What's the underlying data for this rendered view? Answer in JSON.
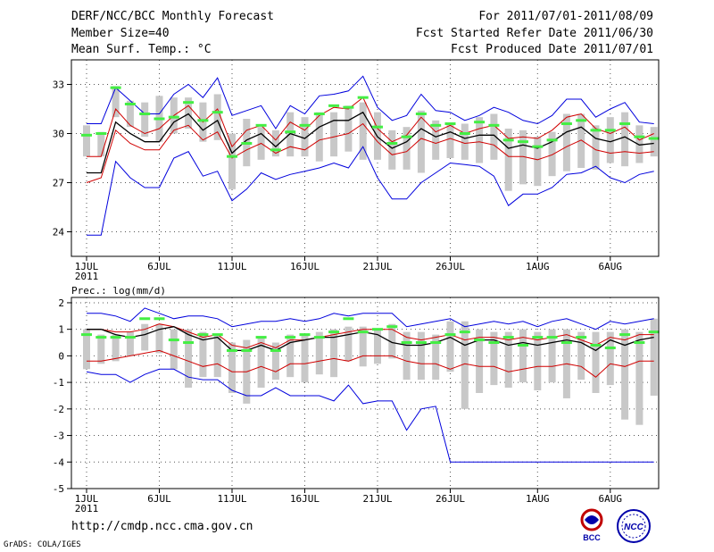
{
  "header": {
    "title": "DERF/NCC/BCC Monthly Forecast",
    "member_size": "Member Size=40",
    "variable": "Mean Surf. Temp.: °C",
    "period": "For 2011/07/01-2011/08/09",
    "start_date": "Fcst Started Refer Date 2011/06/30",
    "produced_date": "Fcst Produced Date 2011/07/01"
  },
  "footer": {
    "url": "http://cmdp.ncc.cma.gov.cn",
    "credit": "GrADS: COLA/IGES",
    "logo_bcc": "BCC",
    "logo_ncc": "NCC"
  },
  "colors": {
    "envelope": "#0000dd",
    "spread": "#d00000",
    "mean": "#000000",
    "box": "#c8c8c8",
    "median": "#44ee44"
  },
  "chart_data": [
    {
      "type": "line",
      "title": "Mean Surf. Temp.: °C",
      "x_tick_labels": [
        "1JUL",
        "6JUL",
        "11JUL",
        "16JUL",
        "21JUL",
        "26JUL",
        "1AUG",
        "6AUG"
      ],
      "x_tick_days": [
        1,
        6,
        11,
        16,
        21,
        26,
        32,
        37
      ],
      "year_label": "2011",
      "ylim": [
        22.5,
        34.5
      ],
      "y_ticks": [
        24,
        27,
        30,
        33
      ],
      "x": [
        1,
        2,
        3,
        4,
        5,
        6,
        7,
        8,
        9,
        10,
        11,
        12,
        13,
        14,
        15,
        16,
        17,
        18,
        19,
        20,
        21,
        22,
        23,
        24,
        25,
        26,
        27,
        28,
        29,
        30,
        31,
        32,
        33,
        34,
        35,
        36,
        37,
        38,
        39,
        40
      ],
      "series": [
        {
          "name": "max",
          "values": [
            23.8,
            23.8,
            28.3,
            27.3,
            26.7,
            26.7,
            28.5,
            28.9,
            27.4,
            27.7,
            25.9,
            26.6,
            27.6,
            27.2,
            27.5,
            27.7,
            27.9,
            28.2,
            27.9,
            29.2,
            27.3,
            26.0,
            26.0,
            27.0,
            27.6,
            28.2,
            28.1,
            28.0,
            27.4,
            25.6,
            26.3,
            26.3,
            26.7,
            27.5,
            27.6,
            28.0,
            27.3,
            27.0,
            27.5,
            27.7
          ]
        },
        {
          "name": "max_upper",
          "values": [
            30.6,
            30.6,
            32.8,
            32.0,
            31.2,
            31.2,
            32.4,
            33.0,
            32.2,
            33.4,
            31.1,
            31.4,
            31.7,
            30.3,
            31.7,
            31.2,
            32.3,
            32.4,
            32.6,
            33.5,
            31.6,
            30.8,
            31.1,
            32.4,
            31.4,
            31.3,
            30.8,
            31.1,
            31.6,
            31.3,
            30.8,
            30.6,
            31.1,
            32.1,
            32.1,
            31.0,
            31.5,
            31.9,
            30.7,
            30.6
          ]
        },
        {
          "name": "spread_low",
          "values": [
            27.0,
            27.3,
            30.2,
            29.4,
            29.0,
            29.0,
            30.2,
            30.5,
            29.6,
            30.1,
            28.5,
            29.0,
            29.4,
            28.8,
            29.2,
            29.0,
            29.6,
            29.8,
            30.0,
            30.6,
            29.5,
            28.7,
            28.9,
            29.7,
            29.4,
            29.7,
            29.4,
            29.5,
            29.3,
            28.6,
            28.6,
            28.4,
            28.7,
            29.2,
            29.6,
            29.0,
            28.8,
            28.9,
            28.8,
            28.9
          ]
        },
        {
          "name": "spread_high",
          "values": [
            28.6,
            28.6,
            31.5,
            30.5,
            30.0,
            30.3,
            31.1,
            31.7,
            30.7,
            31.5,
            29.2,
            30.2,
            30.5,
            29.6,
            30.7,
            30.2,
            31.1,
            31.6,
            31.5,
            32.2,
            30.3,
            29.5,
            29.9,
            31.0,
            30.1,
            30.5,
            30.0,
            30.3,
            30.5,
            29.7,
            29.8,
            29.7,
            30.2,
            31.0,
            31.2,
            30.3,
            30.0,
            30.4,
            29.6,
            30.0
          ]
        },
        {
          "name": "mean",
          "values": [
            27.6,
            27.6,
            30.7,
            30.0,
            29.5,
            29.5,
            30.7,
            31.2,
            30.2,
            30.8,
            28.8,
            29.6,
            30.0,
            29.2,
            30.0,
            29.7,
            30.4,
            30.8,
            30.8,
            31.3,
            29.8,
            29.1,
            29.5,
            30.3,
            29.8,
            30.1,
            29.7,
            29.9,
            29.9,
            29.1,
            29.3,
            29.1,
            29.5,
            30.1,
            30.4,
            29.7,
            29.5,
            29.8,
            29.3,
            29.4
          ]
        }
      ],
      "boxes": [
        {
          "x": 1,
          "low": 28.6,
          "high": 30.5,
          "median": 29.9
        },
        {
          "x": 2,
          "low": 28.6,
          "high": 30.1,
          "median": 30.0
        },
        {
          "x": 3,
          "low": 31.0,
          "high": 32.9,
          "median": 32.8
        },
        {
          "x": 4,
          "low": 30.4,
          "high": 32.0,
          "median": 31.8
        },
        {
          "x": 5,
          "low": 29.8,
          "high": 31.9,
          "median": 31.2
        },
        {
          "x": 6,
          "low": 29.5,
          "high": 32.3,
          "median": 30.9
        },
        {
          "x": 7,
          "low": 30.0,
          "high": 32.2,
          "median": 31.0
        },
        {
          "x": 8,
          "low": 30.3,
          "high": 32.2,
          "median": 31.9
        },
        {
          "x": 9,
          "low": 29.5,
          "high": 31.9,
          "median": 30.8
        },
        {
          "x": 10,
          "low": 29.6,
          "high": 32.4,
          "median": 31.3
        },
        {
          "x": 11,
          "low": 26.6,
          "high": 30.0,
          "median": 28.6
        },
        {
          "x": 12,
          "low": 28.0,
          "high": 30.9,
          "median": 29.4
        },
        {
          "x": 13,
          "low": 28.4,
          "high": 30.4,
          "median": 30.5
        },
        {
          "x": 14,
          "low": 28.6,
          "high": 30.2,
          "median": 29.0
        },
        {
          "x": 15,
          "low": 28.6,
          "high": 31.3,
          "median": 30.1
        },
        {
          "x": 16,
          "low": 28.6,
          "high": 31.0,
          "median": 30.5
        },
        {
          "x": 17,
          "low": 28.3,
          "high": 31.3,
          "median": 31.2
        },
        {
          "x": 18,
          "low": 28.6,
          "high": 31.3,
          "median": 31.7
        },
        {
          "x": 19,
          "low": 28.9,
          "high": 31.7,
          "median": 31.6
        },
        {
          "x": 20,
          "low": 28.4,
          "high": 31.9,
          "median": 32.2
        },
        {
          "x": 21,
          "low": 28.4,
          "high": 31.3,
          "median": 30.4
        },
        {
          "x": 22,
          "low": 27.8,
          "high": 30.2,
          "median": 29.4
        },
        {
          "x": 23,
          "low": 27.8,
          "high": 30.4,
          "median": 29.8
        },
        {
          "x": 24,
          "low": 27.6,
          "high": 31.4,
          "median": 31.2
        },
        {
          "x": 25,
          "low": 28.4,
          "high": 30.8,
          "median": 30.5
        },
        {
          "x": 26,
          "low": 28.5,
          "high": 30.6,
          "median": 30.6
        },
        {
          "x": 27,
          "low": 28.4,
          "high": 30.6,
          "median": 30.0
        },
        {
          "x": 28,
          "low": 28.2,
          "high": 31.0,
          "median": 30.7
        },
        {
          "x": 29,
          "low": 28.4,
          "high": 31.2,
          "median": 30.5
        },
        {
          "x": 30,
          "low": 26.5,
          "high": 30.3,
          "median": 29.6
        },
        {
          "x": 31,
          "low": 26.9,
          "high": 30.2,
          "median": 29.5
        },
        {
          "x": 32,
          "low": 26.8,
          "high": 29.8,
          "median": 29.2
        },
        {
          "x": 33,
          "low": 27.4,
          "high": 30.1,
          "median": 29.6
        },
        {
          "x": 34,
          "low": 27.7,
          "high": 31.2,
          "median": 30.6
        },
        {
          "x": 35,
          "low": 27.9,
          "high": 31.2,
          "median": 30.8
        },
        {
          "x": 36,
          "low": 27.8,
          "high": 30.5,
          "median": 30.2
        },
        {
          "x": 37,
          "low": 28.2,
          "high": 31.0,
          "median": 30.2
        },
        {
          "x": 38,
          "low": 28.0,
          "high": 31.3,
          "median": 30.6
        },
        {
          "x": 39,
          "low": 28.2,
          "high": 30.5,
          "median": 29.8
        },
        {
          "x": 40,
          "low": 28.6,
          "high": 30.4,
          "median": 29.7
        }
      ]
    },
    {
      "type": "line",
      "title": "Prec.: log(mm/d)",
      "x_tick_labels": [
        "1JUL",
        "6JUL",
        "11JUL",
        "16JUL",
        "21JUL",
        "26JUL",
        "1AUG",
        "6AUG"
      ],
      "x_tick_days": [
        1,
        6,
        11,
        16,
        21,
        26,
        32,
        37
      ],
      "year_label": "2011",
      "ylim": [
        -5,
        2.2
      ],
      "y_ticks": [
        -5,
        -4,
        -3,
        -2,
        -1,
        0,
        1,
        2
      ],
      "x": [
        1,
        2,
        3,
        4,
        5,
        6,
        7,
        8,
        9,
        10,
        11,
        12,
        13,
        14,
        15,
        16,
        17,
        18,
        19,
        20,
        21,
        22,
        23,
        24,
        25,
        26,
        27,
        28,
        29,
        30,
        31,
        32,
        33,
        34,
        35,
        36,
        37,
        38,
        39,
        40
      ],
      "series": [
        {
          "name": "min",
          "values": [
            -0.6,
            -0.7,
            -0.7,
            -1.0,
            -0.7,
            -0.5,
            -0.5,
            -0.8,
            -0.9,
            -0.9,
            -1.3,
            -1.5,
            -1.5,
            -1.2,
            -1.5,
            -1.5,
            -1.5,
            -1.7,
            -1.1,
            -1.8,
            -1.7,
            -1.7,
            -2.8,
            -2.0,
            -1.9,
            -4.0,
            -4.0,
            -4.0,
            -4.0,
            -4.0,
            -4.0,
            -4.0,
            -4.0,
            -4.0,
            -4.0,
            -4.0,
            -4.0,
            -4.0,
            -4.0,
            -4.0
          ]
        },
        {
          "name": "max",
          "values": [
            1.6,
            1.6,
            1.5,
            1.3,
            1.8,
            1.6,
            1.4,
            1.5,
            1.5,
            1.4,
            1.1,
            1.2,
            1.3,
            1.3,
            1.4,
            1.3,
            1.4,
            1.6,
            1.5,
            1.6,
            1.6,
            1.6,
            1.1,
            1.2,
            1.3,
            1.4,
            1.1,
            1.2,
            1.3,
            1.2,
            1.3,
            1.1,
            1.3,
            1.4,
            1.2,
            1.0,
            1.3,
            1.2,
            1.3,
            1.4
          ]
        },
        {
          "name": "spread_high",
          "values": [
            1.0,
            1.0,
            0.9,
            0.9,
            1.0,
            1.2,
            1.1,
            0.9,
            0.7,
            0.8,
            0.4,
            0.3,
            0.5,
            0.3,
            0.6,
            0.6,
            0.7,
            0.8,
            0.9,
            1.0,
            1.0,
            1.0,
            0.7,
            0.6,
            0.7,
            0.8,
            0.6,
            0.7,
            0.7,
            0.6,
            0.7,
            0.6,
            0.7,
            0.8,
            0.6,
            0.4,
            0.7,
            0.6,
            0.8,
            0.8
          ]
        },
        {
          "name": "spread_low",
          "values": [
            -0.2,
            -0.2,
            -0.1,
            0.0,
            0.1,
            0.2,
            0.0,
            -0.2,
            -0.4,
            -0.3,
            -0.6,
            -0.6,
            -0.4,
            -0.6,
            -0.3,
            -0.3,
            -0.2,
            -0.1,
            -0.2,
            0.0,
            0.0,
            0.0,
            -0.2,
            -0.3,
            -0.3,
            -0.5,
            -0.3,
            -0.4,
            -0.4,
            -0.6,
            -0.5,
            -0.4,
            -0.4,
            -0.3,
            -0.4,
            -0.8,
            -0.3,
            -0.4,
            -0.2,
            -0.2
          ]
        },
        {
          "name": "mean",
          "values": [
            1.0,
            1.0,
            0.8,
            0.7,
            0.8,
            1.0,
            1.1,
            0.8,
            0.6,
            0.7,
            0.2,
            0.2,
            0.4,
            0.2,
            0.5,
            0.6,
            0.7,
            0.7,
            0.8,
            0.9,
            0.8,
            0.5,
            0.4,
            0.4,
            0.5,
            0.7,
            0.4,
            0.6,
            0.6,
            0.4,
            0.5,
            0.4,
            0.5,
            0.6,
            0.5,
            0.2,
            0.6,
            0.4,
            0.6,
            0.7
          ]
        }
      ],
      "boxes": [
        {
          "x": 1,
          "low": -0.5,
          "high": 1.0,
          "median": 0.8
        },
        {
          "x": 2,
          "low": -0.3,
          "high": 0.8,
          "median": 0.7
        },
        {
          "x": 3,
          "low": -0.2,
          "high": 0.8,
          "median": 0.7
        },
        {
          "x": 4,
          "low": 0.0,
          "high": 0.9,
          "median": 0.7
        },
        {
          "x": 5,
          "low": 0.2,
          "high": 1.2,
          "median": 1.4
        },
        {
          "x": 6,
          "low": 0.1,
          "high": 1.2,
          "median": 1.4
        },
        {
          "x": 7,
          "low": -0.5,
          "high": 1.0,
          "median": 0.6
        },
        {
          "x": 8,
          "low": -1.2,
          "high": 1.0,
          "median": 0.5
        },
        {
          "x": 9,
          "low": -0.8,
          "high": 0.9,
          "median": 0.8
        },
        {
          "x": 10,
          "low": -0.8,
          "high": 0.8,
          "median": 0.8
        },
        {
          "x": 11,
          "low": -1.4,
          "high": 0.5,
          "median": 0.2
        },
        {
          "x": 12,
          "low": -1.8,
          "high": 0.6,
          "median": 0.2
        },
        {
          "x": 13,
          "low": -1.2,
          "high": 0.7,
          "median": 0.7
        },
        {
          "x": 14,
          "low": -0.9,
          "high": 0.5,
          "median": 0.2
        },
        {
          "x": 15,
          "low": -0.8,
          "high": 0.8,
          "median": 0.7
        },
        {
          "x": 16,
          "low": -1.0,
          "high": 0.8,
          "median": 0.8
        },
        {
          "x": 17,
          "low": -0.7,
          "high": 0.9,
          "median": 0.7
        },
        {
          "x": 18,
          "low": -0.8,
          "high": 1.0,
          "median": 0.9
        },
        {
          "x": 19,
          "low": -0.2,
          "high": 1.1,
          "median": 1.4
        },
        {
          "x": 20,
          "low": -0.4,
          "high": 1.1,
          "median": 0.9
        },
        {
          "x": 21,
          "low": -0.3,
          "high": 1.0,
          "median": 1.0
        },
        {
          "x": 22,
          "low": -0.1,
          "high": 1.2,
          "median": 1.1
        },
        {
          "x": 23,
          "low": -0.9,
          "high": 0.9,
          "median": 0.5
        },
        {
          "x": 24,
          "low": -0.9,
          "high": 0.9,
          "median": 0.5
        },
        {
          "x": 25,
          "low": -0.9,
          "high": 0.8,
          "median": 0.5
        },
        {
          "x": 26,
          "low": -0.6,
          "high": 1.3,
          "median": 0.8
        },
        {
          "x": 27,
          "low": -2.0,
          "high": 1.3,
          "median": 0.9
        },
        {
          "x": 28,
          "low": -1.4,
          "high": 1.0,
          "median": 0.6
        },
        {
          "x": 29,
          "low": -1.1,
          "high": 0.9,
          "median": 0.5
        },
        {
          "x": 30,
          "low": -1.2,
          "high": 0.9,
          "median": 0.7
        },
        {
          "x": 31,
          "low": -1.0,
          "high": 1.0,
          "median": 0.4
        },
        {
          "x": 32,
          "low": -1.3,
          "high": 0.9,
          "median": 0.7
        },
        {
          "x": 33,
          "low": -1.0,
          "high": 1.0,
          "median": 0.7
        },
        {
          "x": 34,
          "low": -1.6,
          "high": 1.0,
          "median": 0.5
        },
        {
          "x": 35,
          "low": -0.9,
          "high": 0.9,
          "median": 0.7
        },
        {
          "x": 36,
          "low": -1.4,
          "high": 0.9,
          "median": 0.4
        },
        {
          "x": 37,
          "low": -1.1,
          "high": 0.9,
          "median": 0.3
        },
        {
          "x": 38,
          "low": -2.4,
          "high": 1.0,
          "median": 0.8
        },
        {
          "x": 39,
          "low": -2.6,
          "high": 0.9,
          "median": 0.5
        },
        {
          "x": 40,
          "low": -1.5,
          "high": 1.4,
          "median": 0.9
        }
      ]
    }
  ]
}
